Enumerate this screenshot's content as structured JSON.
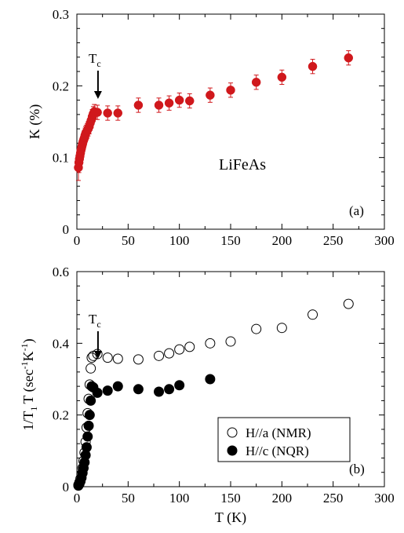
{
  "chart_data": [
    {
      "type": "scatter",
      "panel_label": "(a)",
      "ylabel": "K (%)",
      "xlabel": "",
      "xlim": [
        0,
        300
      ],
      "ylim": [
        0,
        0.3
      ],
      "x_ticks": [
        "0",
        "50",
        "100",
        "150",
        "200",
        "250",
        "300"
      ],
      "y_ticks": [
        "0",
        "0.1",
        "0.2",
        "0.3"
      ],
      "annotation_text": "LiFeAs",
      "tc_label": {
        "main": "T",
        "sub": "c"
      },
      "tc_arrow_x": 16,
      "marker_color": "#d0181c",
      "series": [
        {
          "x": [
            1.5,
            2.0,
            2.5,
            3.0,
            3.5,
            4.0,
            4.5,
            5.0,
            5.5,
            6.0,
            6.5,
            7.0,
            7.5,
            8.0,
            8.5,
            9.0,
            10.0,
            11.0,
            12.0,
            13.0,
            14.0,
            15.0,
            16.0,
            17.0,
            20.0,
            30.0,
            40.0,
            60.0,
            80.0,
            90.0,
            100.0,
            110.0,
            130.0,
            150.0,
            175.0,
            200.0,
            230.0,
            265.0
          ],
          "y": [
            0.086,
            0.093,
            0.098,
            0.102,
            0.106,
            0.11,
            0.113,
            0.116,
            0.119,
            0.122,
            0.124,
            0.126,
            0.128,
            0.131,
            0.133,
            0.135,
            0.137,
            0.14,
            0.143,
            0.148,
            0.152,
            0.157,
            0.161,
            0.164,
            0.163,
            0.162,
            0.162,
            0.173,
            0.173,
            0.176,
            0.18,
            0.179,
            0.187,
            0.194,
            0.205,
            0.212,
            0.227,
            0.239
          ],
          "err": [
            0.018,
            0.014,
            0.012,
            0.011,
            0.01,
            0.01,
            0.01,
            0.01,
            0.01,
            0.01,
            0.01,
            0.01,
            0.01,
            0.01,
            0.01,
            0.01,
            0.01,
            0.01,
            0.01,
            0.01,
            0.01,
            0.01,
            0.01,
            0.01,
            0.01,
            0.01,
            0.01,
            0.01,
            0.01,
            0.01,
            0.01,
            0.01,
            0.01,
            0.01,
            0.01,
            0.01,
            0.01,
            0.01
          ]
        }
      ]
    },
    {
      "type": "scatter",
      "panel_label": "(b)",
      "ylabel_parts": {
        "a": "1/T",
        "a_sub": "1",
        "b": "T (sec",
        "b_sup": "-1",
        "c": "K",
        "c_sup": "-1",
        "d": ")"
      },
      "xlabel": "T (K)",
      "xlim": [
        0,
        300
      ],
      "ylim": [
        0,
        0.6
      ],
      "x_ticks": [
        "0",
        "50",
        "100",
        "150",
        "200",
        "250",
        "300"
      ],
      "y_ticks": [
        "0",
        "0.2",
        "0.4",
        "0.6"
      ],
      "tc_label": {
        "main": "T",
        "sub": "c"
      },
      "tc_arrow_x": 16,
      "series": [
        {
          "name": "H//a (NMR)",
          "marker": "open-circle",
          "x": [
            1.5,
            2.5,
            3.5,
            4.5,
            5.5,
            6.5,
            7.5,
            8.5,
            9.5,
            10.5,
            11.5,
            12.5,
            13.5,
            14.5,
            16.0,
            20.0,
            30.0,
            40.0,
            60.0,
            80.0,
            90.0,
            100.0,
            110.0,
            130.0,
            150.0,
            175.0,
            200.0,
            230.0,
            265.0
          ],
          "y": [
            0.005,
            0.012,
            0.022,
            0.035,
            0.052,
            0.072,
            0.095,
            0.125,
            0.165,
            0.205,
            0.245,
            0.285,
            0.33,
            0.36,
            0.365,
            0.37,
            0.36,
            0.357,
            0.355,
            0.365,
            0.372,
            0.383,
            0.39,
            0.4,
            0.405,
            0.44,
            0.443,
            0.48,
            0.51
          ]
        },
        {
          "name": "H//c (NQR)",
          "marker": "filled-circle",
          "x": [
            1.5,
            2.5,
            3.5,
            4.5,
            5.5,
            6.5,
            7.5,
            8.5,
            9.5,
            10.5,
            11.5,
            12.5,
            13.5,
            14.5,
            16.0,
            20.0,
            30.0,
            40.0,
            60.0,
            80.0,
            90.0,
            100.0,
            130.0
          ],
          "y": [
            0.003,
            0.008,
            0.015,
            0.025,
            0.038,
            0.052,
            0.068,
            0.088,
            0.11,
            0.14,
            0.17,
            0.2,
            0.24,
            0.28,
            0.277,
            0.262,
            0.268,
            0.28,
            0.272,
            0.265,
            0.272,
            0.283,
            0.3
          ]
        }
      ]
    }
  ]
}
